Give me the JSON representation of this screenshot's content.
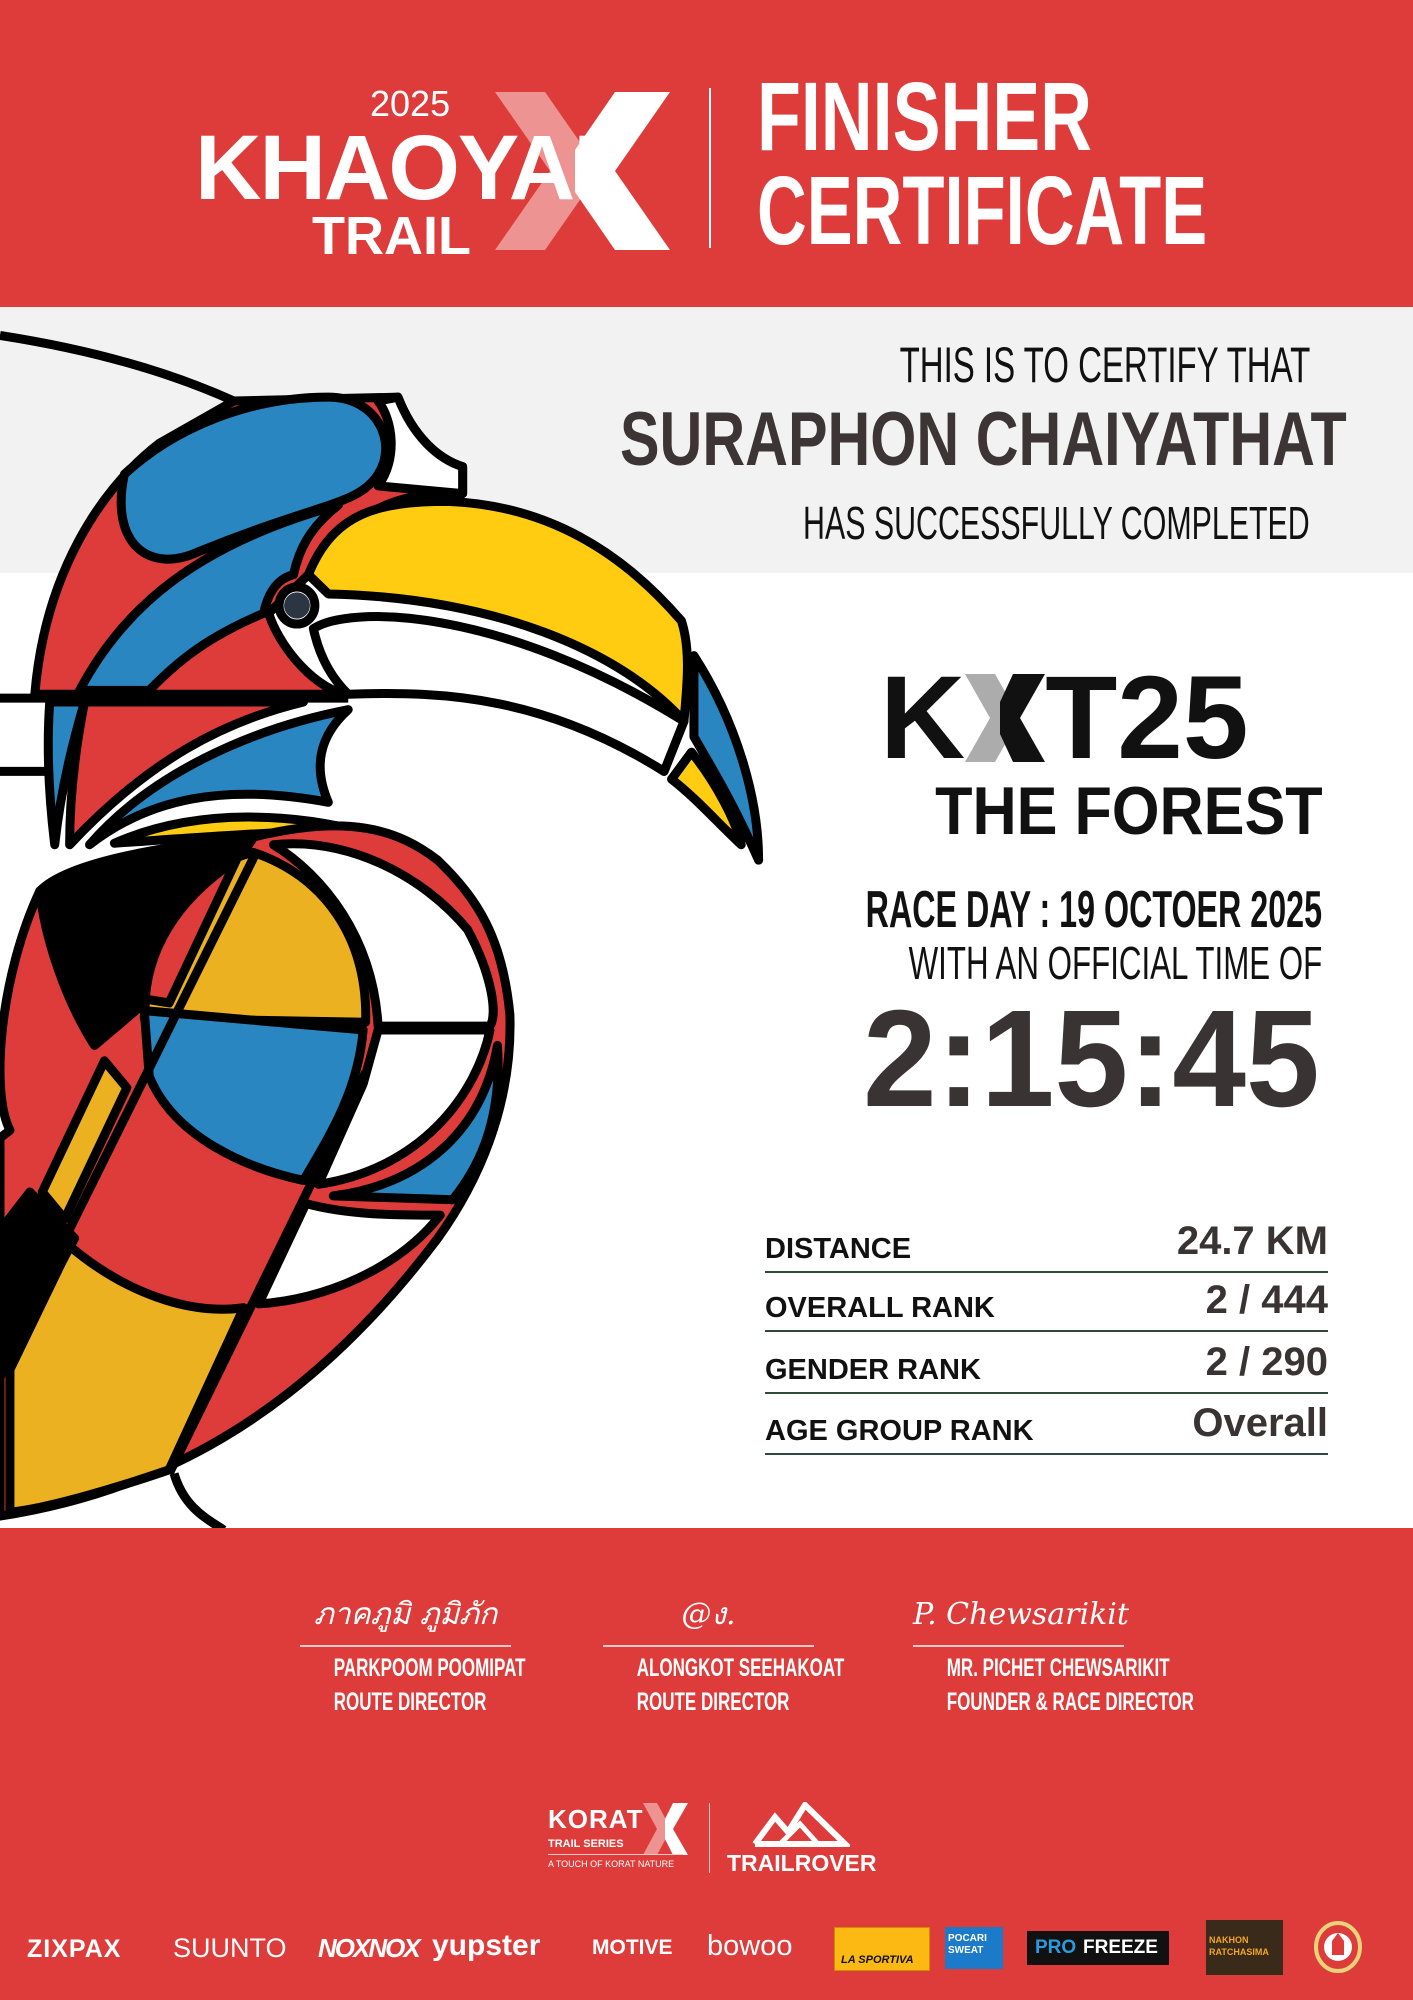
{
  "header": {
    "event_year": "2025",
    "event_name": "KHAOYAI",
    "event_sub": "TRAIL",
    "title_line1": "FINISHER",
    "title_line2": "CERTIFICATE"
  },
  "certify": {
    "intro": "THIS IS TO CERTIFY THAT",
    "runner_name": "SURAPHON CHAIYATHAT",
    "completed": "HAS SUCCESSFULLY COMPLETED"
  },
  "race": {
    "code_k": "K",
    "code_rest": "T25",
    "name": "THE FOREST",
    "race_day": "RACE DAY : 19  OCTOER 2025",
    "time_intro": "WITH AN OFFICIAL TIME OF",
    "official_time": "2:15:45"
  },
  "stats": [
    {
      "label": "DISTANCE",
      "value": "24.7 KM"
    },
    {
      "label": "OVERALL RANK",
      "value": "2 / 444"
    },
    {
      "label": "GENDER RANK",
      "value": "2 / 290"
    },
    {
      "label": "AGE GROUP RANK",
      "value": "Overall"
    }
  ],
  "signatures": [
    {
      "script": "ภาคภูมิ ภูมิภัก",
      "name": "PARKPOOM POOMIPAT",
      "title": "ROUTE DIRECTOR"
    },
    {
      "script": "@ง.",
      "name": "ALONGKOT SEEHAKOAT",
      "title": "ROUTE DIRECTOR"
    },
    {
      "script": "P. Chewsarikit",
      "name": "MR. PICHET CHEWSARIKIT",
      "title": "FOUNDER & RACE DIRECTOR"
    }
  ],
  "organizers": {
    "korat_name": "KORAT",
    "korat_series": "TRAIL SERIES",
    "korat_tagline": "A TOUCH OF KORAT NATURE",
    "trailrover": "TRAILROVER"
  },
  "sponsors": [
    "ZIXPAX",
    "SUUNTO",
    "NOXNOX",
    "yupster",
    "MOTIVE",
    "bowoo",
    "LA SPORTIVA",
    "POCARI SWEAT",
    "PRO",
    "FREEZE",
    "NAKHON RATCHASIMA"
  ],
  "colors": {
    "brand_red": "#DE3C3B",
    "blue": "#2A86C0",
    "yellow": "#FFCC11",
    "mustard": "#EBB120",
    "text_dark": "#3A3333"
  }
}
